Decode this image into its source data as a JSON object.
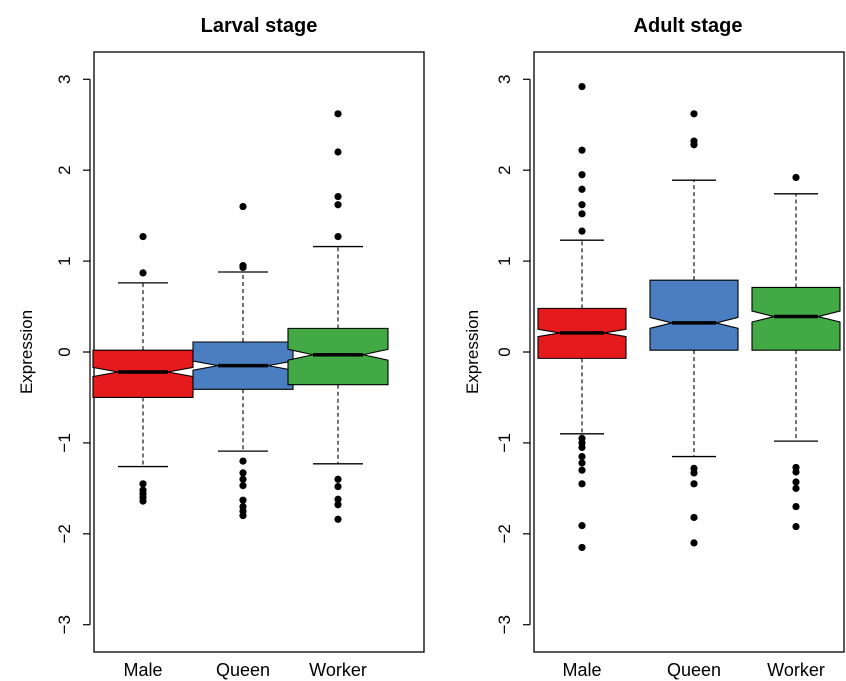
{
  "chart_data": [
    {
      "type": "boxplot",
      "title": "Larval stage",
      "ylabel": "Expression",
      "xlabel": "",
      "ylim": [
        -3.3,
        3.3
      ],
      "yticks": [
        -3,
        -2,
        -1,
        0,
        1,
        2,
        3
      ],
      "ytick_labels": [
        "−3",
        "−2",
        "−1",
        "0",
        "1",
        "2",
        "3"
      ],
      "notched": true,
      "categories": [
        "Male",
        "Queen",
        "Worker"
      ],
      "series": [
        {
          "category": "Male",
          "color": "#e41a1c",
          "min": -1.26,
          "q1": -0.5,
          "median": -0.22,
          "q3": 0.02,
          "max": 0.76,
          "notch_low": -0.27,
          "notch_high": -0.17,
          "outliers": [
            1.27,
            0.87,
            -1.45,
            -1.52,
            -1.56,
            -1.6,
            -1.64
          ]
        },
        {
          "category": "Queen",
          "color": "#4a7ec0",
          "min": -1.09,
          "q1": -0.41,
          "median": -0.15,
          "q3": 0.11,
          "max": 0.88,
          "notch_low": -0.2,
          "notch_high": -0.1,
          "outliers": [
            1.6,
            0.95,
            0.93,
            -1.2,
            -1.33,
            -1.4,
            -1.47,
            -1.63,
            -1.7,
            -1.75,
            -1.8
          ]
        },
        {
          "category": "Worker",
          "color": "#42a945",
          "min": -1.23,
          "q1": -0.36,
          "median": -0.03,
          "q3": 0.26,
          "max": 1.16,
          "notch_low": -0.09,
          "notch_high": 0.03,
          "outliers": [
            2.62,
            2.2,
            1.71,
            1.62,
            1.27,
            -1.4,
            -1.48,
            -1.62,
            -1.68,
            -1.84
          ]
        }
      ]
    },
    {
      "type": "boxplot",
      "title": "Adult stage",
      "ylabel": "Expression",
      "xlabel": "",
      "ylim": [
        -3.3,
        3.3
      ],
      "yticks": [
        -3,
        -2,
        -1,
        0,
        1,
        2,
        3
      ],
      "ytick_labels": [
        "−3",
        "−2",
        "−1",
        "0",
        "1",
        "2",
        "3"
      ],
      "notched": true,
      "categories": [
        "Male",
        "Queen",
        "Worker"
      ],
      "series": [
        {
          "category": "Male",
          "color": "#e41a1c",
          "min": -0.9,
          "q1": -0.07,
          "median": 0.21,
          "q3": 0.48,
          "max": 1.23,
          "notch_low": 0.17,
          "notch_high": 0.25,
          "outliers": [
            2.92,
            2.22,
            1.95,
            1.79,
            1.62,
            1.52,
            1.33,
            -0.95,
            -1.0,
            -1.05,
            -1.15,
            -1.22,
            -1.3,
            -1.45,
            -1.91,
            -2.15
          ]
        },
        {
          "category": "Queen",
          "color": "#4a7ec0",
          "min": -1.15,
          "q1": 0.02,
          "median": 0.32,
          "q3": 0.79,
          "max": 1.89,
          "notch_low": 0.26,
          "notch_high": 0.38,
          "outliers": [
            2.62,
            2.32,
            2.28,
            -1.28,
            -1.33,
            -1.45,
            -1.82,
            -2.1
          ]
        },
        {
          "category": "Worker",
          "color": "#42a945",
          "min": -0.98,
          "q1": 0.02,
          "median": 0.39,
          "q3": 0.71,
          "max": 1.74,
          "notch_low": 0.33,
          "notch_high": 0.45,
          "outliers": [
            1.92,
            -1.27,
            -1.32,
            -1.43,
            -1.5,
            -1.7,
            -1.92
          ]
        }
      ]
    }
  ]
}
